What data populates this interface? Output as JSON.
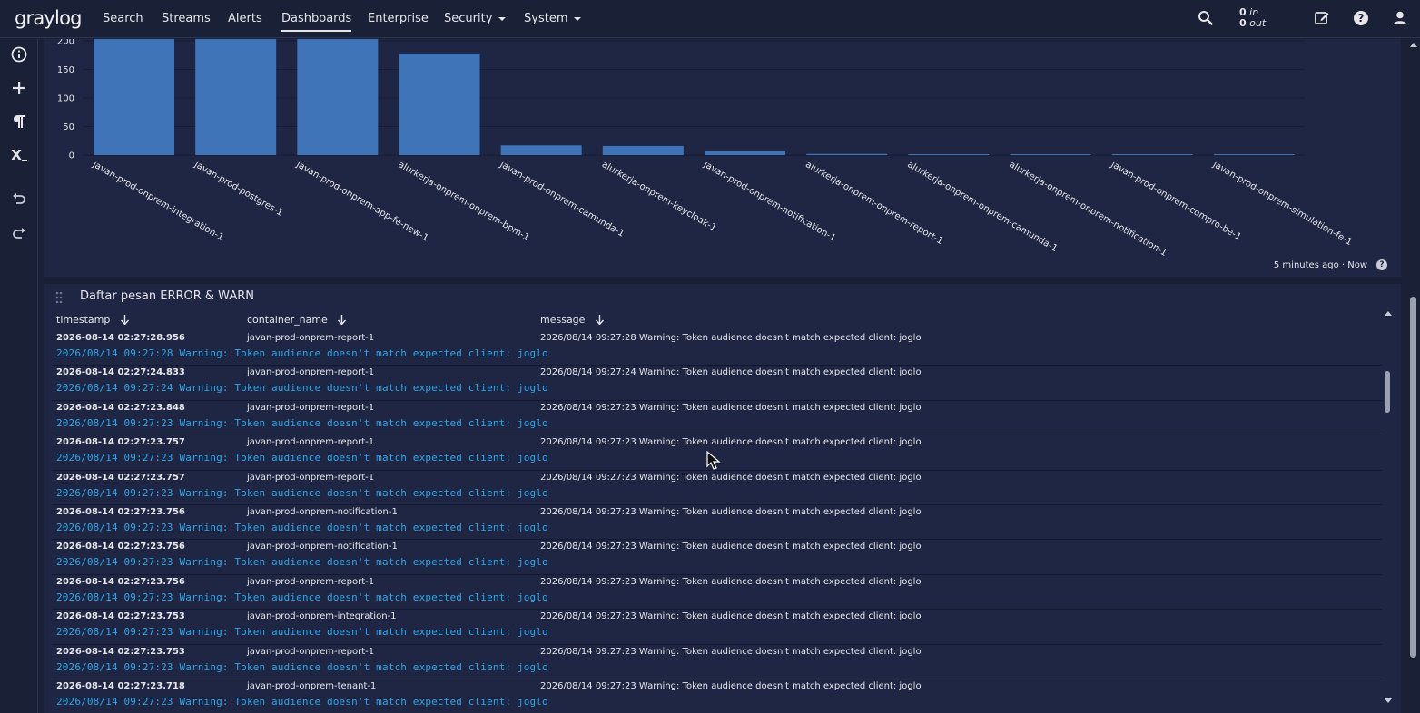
{
  "app": {
    "logo_text": "graylog",
    "nav": {
      "search": "Search",
      "streams": "Streams",
      "alerts": "Alerts",
      "dashboards": "Dashboards",
      "enterprise": "Enterprise",
      "security": "Security",
      "system": "System"
    },
    "throughput": {
      "in_value": "0",
      "in_label": "in",
      "out_value": "0",
      "out_label": "out"
    },
    "icons": [
      "search-icon",
      "edit-icon",
      "help-icon",
      "user-icon"
    ]
  },
  "sidebar": {
    "icons": [
      "info-icon",
      "add-icon",
      "paragraph-icon",
      "parameter-icon",
      "undo-icon",
      "redo-icon"
    ],
    "parameter_label": "X"
  },
  "chart_widget": {
    "footer": "5 minutes ago · Now",
    "chart_data": {
      "type": "bar",
      "categories": [
        "javan-prod-onprem-integration-1",
        "javan-prod-postgres-1",
        "javan-prod-onprem-app-fe-new-1",
        "alurkerja-onprem-onprem-bpm-1",
        "javan-prod-onprem-camunda-1",
        "alurkerja-onprem-keycloak-1",
        "javan-prod-onprem-notification-1",
        "alurkerja-onprem-onprem-report-1",
        "alurkerja-onprem-onprem-camunda-1",
        "alurkerja-onprem-onprem-notification-1",
        "javan-prod-onprem-compro-be-1",
        "javan-prod-onprem-simulation-fe-1"
      ],
      "values": [
        230,
        230,
        230,
        178,
        17,
        16,
        7,
        2,
        1,
        1,
        0.5,
        0.5
      ],
      "yticks": [
        0,
        50,
        100,
        150,
        200
      ],
      "ylim": [
        0,
        230
      ],
      "color": "#3f74b8",
      "grid": true
    }
  },
  "table_widget": {
    "title": "Daftar pesan ERROR & WARN",
    "columns": {
      "timestamp": "timestamp",
      "container_name": "container_name",
      "message": "message"
    },
    "rows": [
      {
        "ts": "2026-08-14 02:27:28.956",
        "container": "javan-prod-onprem-report-1",
        "message": "2026/08/14 09:27:28 Warning: Token audience doesn't match expected client: joglo",
        "full": "2026/08/14 09:27:28 Warning: Token audience doesn't match expected client: joglo"
      },
      {
        "ts": "2026-08-14 02:27:24.833",
        "container": "javan-prod-onprem-report-1",
        "message": "2026/08/14 09:27:24 Warning: Token audience doesn't match expected client: joglo",
        "full": "2026/08/14 09:27:24 Warning: Token audience doesn't match expected client: joglo"
      },
      {
        "ts": "2026-08-14 02:27:23.848",
        "container": "javan-prod-onprem-report-1",
        "message": "2026/08/14 09:27:23 Warning: Token audience doesn't match expected client: joglo",
        "full": "2026/08/14 09:27:23 Warning: Token audience doesn't match expected client: joglo"
      },
      {
        "ts": "2026-08-14 02:27:23.757",
        "container": "javan-prod-onprem-report-1",
        "message": "2026/08/14 09:27:23 Warning: Token audience doesn't match expected client: joglo",
        "full": "2026/08/14 09:27:23 Warning: Token audience doesn't match expected client: joglo"
      },
      {
        "ts": "2026-08-14 02:27:23.757",
        "container": "javan-prod-onprem-report-1",
        "message": "2026/08/14 09:27:23 Warning: Token audience doesn't match expected client: joglo",
        "full": "2026/08/14 09:27:23 Warning: Token audience doesn't match expected client: joglo"
      },
      {
        "ts": "2026-08-14 02:27:23.756",
        "container": "javan-prod-onprem-notification-1",
        "message": "2026/08/14 09:27:23 Warning: Token audience doesn't match expected client: joglo",
        "full": "2026/08/14 09:27:23 Warning: Token audience doesn't match expected client: joglo"
      },
      {
        "ts": "2026-08-14 02:27:23.756",
        "container": "javan-prod-onprem-notification-1",
        "message": "2026/08/14 09:27:23 Warning: Token audience doesn't match expected client: joglo",
        "full": "2026/08/14 09:27:23 Warning: Token audience doesn't match expected client: joglo"
      },
      {
        "ts": "2026-08-14 02:27:23.756",
        "container": "javan-prod-onprem-report-1",
        "message": "2026/08/14 09:27:23 Warning: Token audience doesn't match expected client: joglo",
        "full": "2026/08/14 09:27:23 Warning: Token audience doesn't match expected client: joglo"
      },
      {
        "ts": "2026-08-14 02:27:23.753",
        "container": "javan-prod-onprem-integration-1",
        "message": "2026/08/14 09:27:23 Warning: Token audience doesn't match expected client: joglo",
        "full": "2026/08/14 09:27:23 Warning: Token audience doesn't match expected client: joglo"
      },
      {
        "ts": "2026-08-14 02:27:23.753",
        "container": "javan-prod-onprem-report-1",
        "message": "2026/08/14 09:27:23 Warning: Token audience doesn't match expected client: joglo",
        "full": "2026/08/14 09:27:23 Warning: Token audience doesn't match expected client: joglo"
      },
      {
        "ts": "2026-08-14 02:27:23.718",
        "container": "javan-prod-onprem-tenant-1",
        "message": "2026/08/14 09:27:23 Warning: Token audience doesn't match expected client: joglo",
        "full": "2026/08/14 09:27:23 Warning: Token audience doesn't match expected client: joglo"
      }
    ]
  }
}
